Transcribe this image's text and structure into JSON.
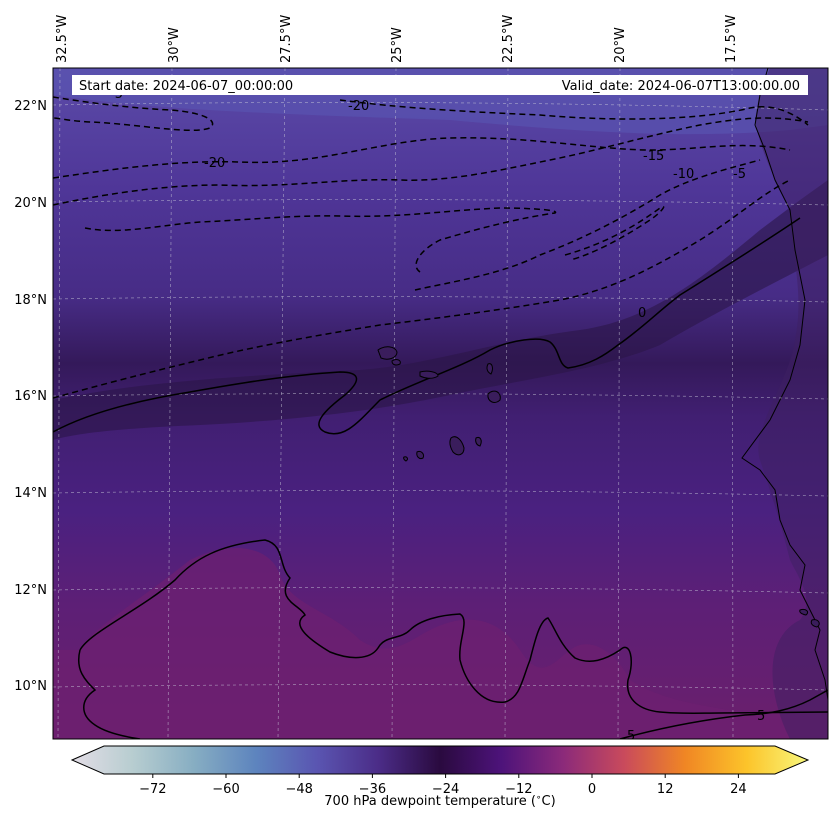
{
  "header": {
    "start_date": "Start date: 2024-06-07_00:00:00",
    "valid_date": "Valid_date: 2024-06-07T13:00:00.00"
  },
  "map": {
    "longitude_labels": [
      "32.5°W",
      "30°W",
      "27.5°W",
      "25°W",
      "22.5°W",
      "20°W",
      "17.5°W"
    ],
    "latitude_labels": [
      "22°N",
      "20°N",
      "18°N",
      "16°N",
      "14°N",
      "12°N",
      "10°N"
    ],
    "contour_labels": [
      "-20",
      "-20",
      "-15",
      "-10",
      "-5",
      "-5",
      "0",
      "5",
      "5"
    ],
    "field_colors": {
      "dry_north": "#5a4aa6",
      "mid_band": "#45287e",
      "dark_band": "#2c1648",
      "moist_south": "#6a1f6e",
      "land": "#3b1f5e"
    },
    "grid": true
  },
  "colorbar": {
    "label": "700 hPa dewpoint temperature ($^\\circ$C)",
    "ticks": [
      "−72",
      "−60",
      "−48",
      "−36",
      "−24",
      "−12",
      "0",
      "12",
      "24"
    ],
    "range": [
      -80,
      30
    ],
    "extend": "both",
    "colormap_stops": [
      "#e3dde6",
      "#b7cdd0",
      "#86adc2",
      "#5d84be",
      "#5a55b1",
      "#4b2c87",
      "#2a0a3f",
      "#4d137a",
      "#8b2a7a",
      "#c94a5c",
      "#f08624",
      "#fcc42a",
      "#f8f77d"
    ]
  }
}
